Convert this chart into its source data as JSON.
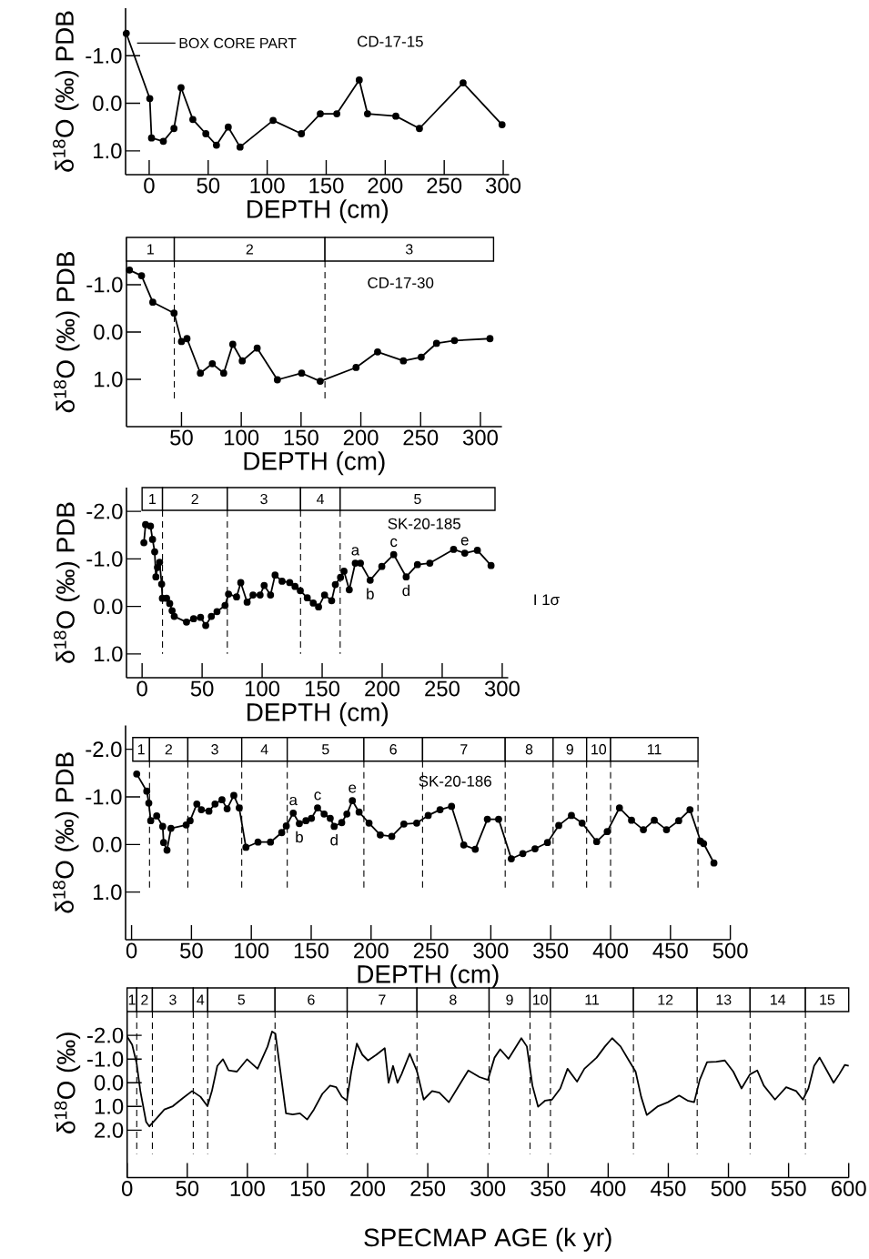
{
  "chart_data": [
    {
      "type": "line",
      "xlabel": "DEPTH (cm)",
      "ylabel": "δ$^{18}$O (‰) PDB",
      "color": "#000000",
      "marker": "circle",
      "x": [
        -19.4,
        0.5,
        2,
        12,
        21,
        27,
        37,
        48,
        57,
        67,
        77,
        105,
        129,
        145,
        159,
        178,
        185,
        209,
        229,
        266,
        299
      ],
      "values": [
        -1.47,
        -0.1,
        0.73,
        0.8,
        0.53,
        -0.33,
        0.34,
        0.64,
        0.88,
        0.5,
        0.92,
        0.36,
        0.64,
        0.22,
        0.22,
        -0.49,
        0.22,
        0.27,
        0.53,
        -0.43,
        0.45
      ],
      "xlim": [
        -20,
        305
      ],
      "ylim": [
        1.5,
        -2.0
      ],
      "xticks": [
        0,
        50,
        100,
        150,
        200,
        250,
        300
      ],
      "yticks": [
        {
          "value": -1,
          "label": "-1.0"
        },
        {
          "value": 0,
          "label": "0.0"
        },
        {
          "value": 1,
          "label": "1.0"
        }
      ],
      "annotations": [
        "BOX CORE PART",
        "CD-17-15"
      ]
    },
    {
      "type": "line",
      "xlabel": "DEPTH (cm)",
      "ylabel": "δ$^{18}$O (‰) PDB",
      "color": "#000000",
      "marker": "circle",
      "x": [
        6.5,
        16.6,
        26,
        43.8,
        50,
        54.6,
        65.8,
        75.8,
        85.3,
        92.9,
        100.8,
        113.3,
        130.2,
        150.5,
        166,
        196,
        214,
        235.6,
        250.5,
        263.3,
        278.3,
        308
      ],
      "values": [
        -1.31,
        -1.19,
        -0.63,
        -0.4,
        0.2,
        0.14,
        0.87,
        0.67,
        0.87,
        0.26,
        0.61,
        0.34,
        1.01,
        0.87,
        1.04,
        0.75,
        0.42,
        0.61,
        0.53,
        0.24,
        0.18,
        0.14
      ],
      "xlim": [
        4,
        318
      ],
      "ylim": [
        2.0,
        -2.0
      ],
      "xticks": [
        50,
        100,
        150,
        200,
        250,
        300
      ],
      "yticks": [
        {
          "value": -1,
          "label": "-1.0"
        },
        {
          "value": 0,
          "label": "0.0"
        },
        {
          "value": 1,
          "label": "1.0"
        }
      ],
      "bands": [
        {
          "axis": "x",
          "from": 4,
          "to": 44,
          "label": "1"
        },
        {
          "axis": "x",
          "from": 44,
          "to": 170,
          "label": "2"
        },
        {
          "axis": "x",
          "from": 170,
          "to": 311,
          "label": "3"
        }
      ],
      "ref_lines": [
        {
          "axis": "x",
          "value": 44,
          "line_style": "dashed"
        },
        {
          "axis": "x",
          "value": 170,
          "line_style": "dashed"
        }
      ],
      "annotations": [
        "CD-17-30"
      ]
    },
    {
      "type": "line",
      "xlabel": "DEPTH (cm)",
      "ylabel": "δ$^{18}$O (‰) PDB",
      "color": "#000000",
      "marker": "circle",
      "x": [
        1.5,
        2.9,
        7,
        8.7,
        10.5,
        11.5,
        12.8,
        14.6,
        16.3,
        16.9,
        20.4,
        23,
        25,
        26.8,
        37,
        42.9,
        48.7,
        53,
        57.7,
        62.4,
        69.1,
        72,
        78.7,
        82.2,
        87.5,
        92.4,
        98.3,
        101.7,
        107,
        110.8,
        116.6,
        123,
        127.4,
        131.8,
        137.6,
        142.6,
        147,
        152,
        157.9,
        161,
        165.3,
        168.2,
        172.6,
        177.6,
        181.9,
        190,
        199.7,
        209.6,
        220,
        229.4,
        239.7,
        259.5,
        268.8,
        279.3,
        290.7
      ],
      "values": [
        -1.34,
        -1.72,
        -1.69,
        -1.41,
        -1.15,
        -0.62,
        -0.82,
        -0.93,
        -0.47,
        -0.17,
        -0.17,
        -0.06,
        0.09,
        0.21,
        0.33,
        0.26,
        0.23,
        0.4,
        0.21,
        0.11,
        -0.02,
        -0.26,
        -0.2,
        -0.5,
        -0.09,
        -0.24,
        -0.24,
        -0.44,
        -0.24,
        -0.66,
        -0.53,
        -0.5,
        -0.42,
        -0.33,
        -0.18,
        -0.07,
        0.01,
        -0.24,
        -0.12,
        -0.46,
        -0.61,
        -0.74,
        -0.35,
        -0.91,
        -0.91,
        -0.55,
        -0.84,
        -1.09,
        -0.62,
        -0.88,
        -0.91,
        -1.2,
        -1.12,
        -1.18,
        -0.86
      ],
      "xlim": [
        -13,
        305
      ],
      "ylim": [
        1.5,
        -2.5
      ],
      "xticks": [
        0,
        50,
        100,
        150,
        200,
        250,
        300
      ],
      "yticks": [
        {
          "value": -2,
          "label": "-2.0"
        },
        {
          "value": -1,
          "label": "-1.0"
        },
        {
          "value": 0,
          "label": "0.0"
        },
        {
          "value": 1,
          "label": "1.0"
        }
      ],
      "bands": [
        {
          "axis": "x",
          "from": 0,
          "to": 17,
          "label": "1"
        },
        {
          "axis": "x",
          "from": 17,
          "to": 71,
          "label": "2"
        },
        {
          "axis": "x",
          "from": 71,
          "to": 132,
          "label": "3"
        },
        {
          "axis": "x",
          "from": 132,
          "to": 165,
          "label": "4"
        },
        {
          "axis": "x",
          "from": 165,
          "to": 294,
          "label": "5"
        }
      ],
      "ref_lines": [
        {
          "axis": "x",
          "value": 17,
          "line_style": "dashed"
        },
        {
          "axis": "x",
          "value": 71,
          "line_style": "dashed"
        },
        {
          "axis": "x",
          "value": 132,
          "line_style": "dashed"
        },
        {
          "axis": "x",
          "value": 165,
          "line_style": "dashed"
        }
      ],
      "annotations": [
        "SK-20-185",
        {
          "text": "a",
          "x": 177.6,
          "y": -0.91
        },
        {
          "text": "b",
          "x": 190,
          "y": -0.55
        },
        {
          "text": "c",
          "x": 209.6,
          "y": -1.09
        },
        {
          "text": "d",
          "x": 220,
          "y": -0.62
        },
        {
          "text": "e",
          "x": 268.8,
          "y": -1.12
        },
        "I 1σ"
      ]
    },
    {
      "type": "line",
      "xlabel": "DEPTH (cm)",
      "ylabel": "δ$^{18}$O (‰) PDB",
      "color": "#000000",
      "marker": "circle",
      "x": [
        4.3,
        12.7,
        14.4,
        16,
        21,
        26,
        26.8,
        29.6,
        32.9,
        45.6,
        48.9,
        54.5,
        58.3,
        64.6,
        69.7,
        75.5,
        79.8,
        85.4,
        89.9,
        95.5,
        105.6,
        116,
        125.4,
        129.2,
        135,
        140.1,
        145.6,
        150.2,
        155.3,
        160.8,
        165.9,
        169.2,
        175.5,
        179.8,
        184.4,
        190,
        198.3,
        207.7,
        217.3,
        227.4,
        238.1,
        247.7,
        257.6,
        267.2,
        277.4,
        287,
        297.1,
        306.5,
        317.1,
        326.7,
        336.9,
        347.3,
        356.7,
        367.3,
        376.2,
        388.4,
        397.2,
        407.4,
        417.5,
        427.4,
        436.5,
        446.7,
        456.9,
        466.3,
        475.2,
        477.7,
        486.3
      ],
      "values": [
        -1.48,
        -1.12,
        -0.87,
        -0.5,
        -0.6,
        -0.38,
        -0.04,
        0.12,
        -0.34,
        -0.41,
        -0.5,
        -0.85,
        -0.73,
        -0.7,
        -0.85,
        -0.94,
        -0.75,
        -1.03,
        -0.77,
        0.06,
        -0.05,
        -0.05,
        -0.25,
        -0.39,
        -0.66,
        -0.44,
        -0.5,
        -0.55,
        -0.77,
        -0.64,
        -0.55,
        -0.38,
        -0.46,
        -0.64,
        -0.92,
        -0.68,
        -0.45,
        -0.2,
        -0.17,
        -0.43,
        -0.45,
        -0.61,
        -0.73,
        -0.8,
        0.01,
        0.1,
        -0.53,
        -0.53,
        0.3,
        0.19,
        0.09,
        -0.04,
        -0.4,
        -0.61,
        -0.45,
        -0.06,
        -0.27,
        -0.77,
        -0.51,
        -0.31,
        -0.51,
        -0.31,
        -0.5,
        -0.73,
        -0.07,
        -0.02,
        0.39
      ],
      "xlim": [
        -5,
        500
      ],
      "ylim": [
        2.0,
        -2.5
      ],
      "xticks": [
        0,
        50,
        100,
        150,
        200,
        250,
        300,
        350,
        400,
        450,
        500
      ],
      "yticks": [
        {
          "value": -2,
          "label": "-2.0"
        },
        {
          "value": -1,
          "label": "-1.0"
        },
        {
          "value": 0,
          "label": "0.0"
        },
        {
          "value": 1,
          "label": "1.0"
        }
      ],
      "bands": [
        {
          "axis": "x",
          "from": 1,
          "to": 15,
          "label": "1"
        },
        {
          "axis": "x",
          "from": 15,
          "to": 47,
          "label": "2"
        },
        {
          "axis": "x",
          "from": 47,
          "to": 92,
          "label": "3"
        },
        {
          "axis": "x",
          "from": 92,
          "to": 130,
          "label": "4"
        },
        {
          "axis": "x",
          "from": 130,
          "to": 194,
          "label": "5"
        },
        {
          "axis": "x",
          "from": 194,
          "to": 243,
          "label": "6"
        },
        {
          "axis": "x",
          "from": 243,
          "to": 312,
          "label": "7"
        },
        {
          "axis": "x",
          "from": 312,
          "to": 352,
          "label": "8"
        },
        {
          "axis": "x",
          "from": 352,
          "to": 380,
          "label": "9"
        },
        {
          "axis": "x",
          "from": 380,
          "to": 400,
          "label": "10"
        },
        {
          "axis": "x",
          "from": 400,
          "to": 473,
          "label": "11"
        }
      ],
      "ref_lines": [
        {
          "axis": "x",
          "value": 15,
          "line_style": "dashed"
        },
        {
          "axis": "x",
          "value": 47,
          "line_style": "dashed"
        },
        {
          "axis": "x",
          "value": 92,
          "line_style": "dashed"
        },
        {
          "axis": "x",
          "value": 130,
          "line_style": "dashed"
        },
        {
          "axis": "x",
          "value": 194,
          "line_style": "dashed"
        },
        {
          "axis": "x",
          "value": 243,
          "line_style": "dashed"
        },
        {
          "axis": "x",
          "value": 312,
          "line_style": "dashed"
        },
        {
          "axis": "x",
          "value": 352,
          "line_style": "dashed"
        },
        {
          "axis": "x",
          "value": 380,
          "line_style": "dashed"
        },
        {
          "axis": "x",
          "value": 400,
          "line_style": "dashed"
        },
        {
          "axis": "x",
          "value": 473,
          "line_style": "dashed"
        }
      ],
      "annotations": [
        "SK-20-186",
        {
          "text": "a",
          "x": 135,
          "y": -0.66
        },
        {
          "text": "b",
          "x": 140.1,
          "y": -0.44
        },
        {
          "text": "c",
          "x": 155.3,
          "y": -0.77
        },
        {
          "text": "d",
          "x": 169.2,
          "y": -0.38
        },
        {
          "text": "e",
          "x": 184.4,
          "y": -0.92
        }
      ]
    },
    {
      "type": "line",
      "xlabel": "SPECMAP AGE (k yr)",
      "ylabel": "δ$^{18}$O (‰)",
      "color": "#000000",
      "x": [
        0,
        4.2,
        7.9,
        11,
        15.8,
        18.5,
        24,
        31,
        38,
        46,
        54,
        61,
        66.8,
        70.5,
        75,
        79.7,
        84.4,
        91.3,
        99.7,
        108.5,
        116.8,
        120.5,
        123.3,
        127.5,
        132.1,
        137.7,
        143.7,
        149.7,
        155.3,
        162.3,
        168.8,
        173.9,
        178.5,
        182.7,
        186.4,
        191,
        195.6,
        200.3,
        207.2,
        214.2,
        217.4,
        221.1,
        224.8,
        228.1,
        235,
        241.1,
        246.6,
        253.6,
        259.6,
        267.5,
        274.5,
        283.7,
        293,
        300,
        305.5,
        310.2,
        317.1,
        327.8,
        332.4,
        337,
        341.7,
        347.7,
        353.3,
        360.2,
        366.2,
        374.1,
        380.2,
        390.4,
        397.3,
        403.3,
        410.3,
        417.2,
        422.8,
        427.4,
        432.1,
        441.4,
        449.7,
        459,
        465.9,
        471.5,
        476.1,
        482.2,
        490,
        497,
        504,
        510.9,
        517.8,
        523.9,
        529.4,
        538.7,
        548,
        556.3,
        561.9,
        566.5,
        571.2,
        575.8,
        581.8,
        587.4,
        592,
        596.7,
        600
      ],
      "values": [
        -1.95,
        -1.6,
        -0.82,
        0.35,
        1.65,
        1.84,
        1.53,
        1.13,
        0.99,
        0.66,
        0.35,
        0.59,
        0.99,
        0.35,
        -0.71,
        -0.99,
        -0.52,
        -0.47,
        -0.99,
        -0.59,
        -1.53,
        -2.16,
        -2.07,
        -0.47,
        1.29,
        1.34,
        1.29,
        1.55,
        1.13,
        0.47,
        0.12,
        0.19,
        0.59,
        0.75,
        -0.47,
        -1.65,
        -1.18,
        -0.94,
        -1.18,
        -1.46,
        0.0,
        -0.71,
        0.0,
        -0.35,
        -1.22,
        -0.47,
        0.71,
        0.35,
        0.42,
        0.82,
        0.24,
        -0.52,
        -0.24,
        -0.12,
        -1.06,
        -1.41,
        -1.01,
        -1.88,
        -1.53,
        0.12,
        1.01,
        0.75,
        0.71,
        0.24,
        -0.59,
        -0.05,
        -0.59,
        -1.06,
        -1.53,
        -1.88,
        -1.53,
        -0.94,
        -0.47,
        0.59,
        1.36,
        0.99,
        0.82,
        0.54,
        0.75,
        0.82,
        -0.12,
        -0.87,
        -0.89,
        -0.94,
        -0.47,
        0.24,
        -0.35,
        -0.52,
        0.12,
        0.71,
        0.19,
        0.35,
        0.71,
        0.24,
        -0.71,
        -1.06,
        -0.52,
        0.0,
        -0.35,
        -0.75,
        -0.71
      ],
      "xlim": [
        0,
        600
      ],
      "ylim": [
        4.0,
        -4.0
      ],
      "xticks": [
        0,
        50,
        100,
        150,
        200,
        250,
        300,
        350,
        400,
        450,
        500,
        550,
        600
      ],
      "yticks": [
        {
          "value": -2,
          "label": "-2.0"
        },
        {
          "value": -1,
          "label": "-1.0"
        },
        {
          "value": 0,
          "label": "0.0"
        },
        {
          "value": 1,
          "label": "1.0"
        },
        {
          "value": 2,
          "label": "2.0"
        }
      ],
      "bands": [
        {
          "axis": "x",
          "from": 0,
          "to": 8,
          "label": "1"
        },
        {
          "axis": "x",
          "from": 8,
          "to": 21,
          "label": "2"
        },
        {
          "axis": "x",
          "from": 21,
          "to": 55,
          "label": "3"
        },
        {
          "axis": "x",
          "from": 55,
          "to": 67,
          "label": "4"
        },
        {
          "axis": "x",
          "from": 67,
          "to": 123,
          "label": "5"
        },
        {
          "axis": "x",
          "from": 123,
          "to": 183,
          "label": "6"
        },
        {
          "axis": "x",
          "from": 183,
          "to": 241,
          "label": "7"
        },
        {
          "axis": "x",
          "from": 241,
          "to": 301,
          "label": "8"
        },
        {
          "axis": "x",
          "from": 301,
          "to": 335,
          "label": "9"
        },
        {
          "axis": "x",
          "from": 335,
          "to": 352,
          "label": "10"
        },
        {
          "axis": "x",
          "from": 352,
          "to": 421,
          "label": "11"
        },
        {
          "axis": "x",
          "from": 421,
          "to": 474,
          "label": "12"
        },
        {
          "axis": "x",
          "from": 474,
          "to": 518,
          "label": "13"
        },
        {
          "axis": "x",
          "from": 518,
          "to": 564,
          "label": "14"
        },
        {
          "axis": "x",
          "from": 564,
          "to": 600,
          "label": "15"
        }
      ],
      "ref_lines": [
        {
          "axis": "x",
          "value": 8,
          "line_style": "dashed"
        },
        {
          "axis": "x",
          "value": 21,
          "line_style": "dashed"
        },
        {
          "axis": "x",
          "value": 55,
          "line_style": "dashed"
        },
        {
          "axis": "x",
          "value": 67,
          "line_style": "dashed"
        },
        {
          "axis": "x",
          "value": 123,
          "line_style": "dashed"
        },
        {
          "axis": "x",
          "value": 183,
          "line_style": "dashed"
        },
        {
          "axis": "x",
          "value": 241,
          "line_style": "dashed"
        },
        {
          "axis": "x",
          "value": 301,
          "line_style": "dashed"
        },
        {
          "axis": "x",
          "value": 335,
          "line_style": "dashed"
        },
        {
          "axis": "x",
          "value": 352,
          "line_style": "dashed"
        },
        {
          "axis": "x",
          "value": 421,
          "line_style": "dashed"
        },
        {
          "axis": "x",
          "value": 474,
          "line_style": "dashed"
        },
        {
          "axis": "x",
          "value": 518,
          "line_style": "dashed"
        },
        {
          "axis": "x",
          "value": 564,
          "line_style": "dashed"
        }
      ]
    }
  ]
}
